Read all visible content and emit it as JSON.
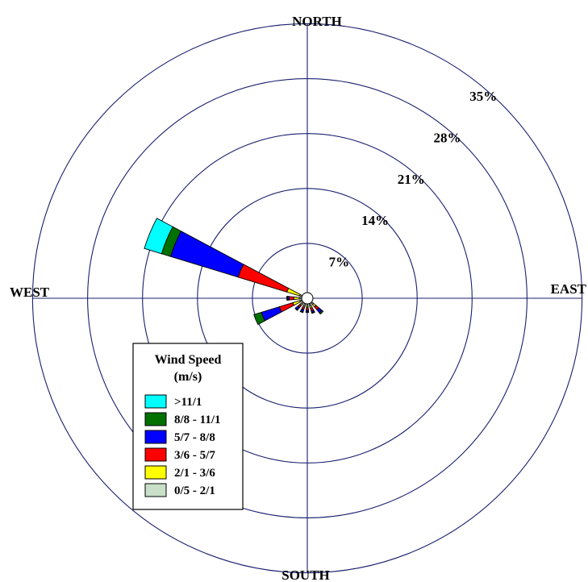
{
  "chart_data": {
    "type": "wind-rose",
    "title": "",
    "directions": {
      "north": "NORTH",
      "east": "EAST",
      "south": "SOUTH",
      "west": "WEST"
    },
    "radial_axis": {
      "max_percent": 35,
      "ticks": [
        7,
        14,
        21,
        28,
        35
      ],
      "tick_labels": [
        "7%",
        "14%",
        "21%",
        "28%",
        "35%"
      ]
    },
    "legend": {
      "title_line1": "Wind Speed",
      "title_line2": "(m/s)",
      "placement": "bottom-left"
    },
    "speed_bins": [
      {
        "label": "0/5 - 2/1",
        "color": "#c8e0c8"
      },
      {
        "label": "2/1 - 3/6",
        "color": "#ffff00"
      },
      {
        "label": "3/6 - 5/7",
        "color": "#ff0000"
      },
      {
        "label": "5/7 - 8/8",
        "color": "#0000ff"
      },
      {
        "label": "8/8 - 11/1",
        "color": "#007000"
      },
      {
        "label": ">11/1",
        "color": "#00ffff"
      }
    ],
    "sectors": [
      {
        "direction_deg": 292.5,
        "cumulative_percent": [
          0.3,
          2.0,
          8.5,
          17.5,
          18.7,
          21.0
        ]
      },
      {
        "direction_deg": 270,
        "cumulative_percent": [
          0.3,
          1.0,
          1.6,
          1.8,
          1.9,
          1.9
        ]
      },
      {
        "direction_deg": 247.5,
        "cumulative_percent": [
          0.3,
          1.2,
          3.0,
          5.4,
          6.4,
          6.4
        ]
      },
      {
        "direction_deg": 135,
        "cumulative_percent": [
          0.3,
          0.7,
          1.2,
          1.7,
          1.9,
          1.9
        ]
      },
      {
        "direction_deg": 157.5,
        "cumulative_percent": [
          0.3,
          0.6,
          1.0,
          1.2,
          1.3,
          1.3
        ]
      },
      {
        "direction_deg": 180,
        "cumulative_percent": [
          0.3,
          0.5,
          0.8,
          1.0,
          1.1,
          1.1
        ]
      },
      {
        "direction_deg": 202.5,
        "cumulative_percent": [
          0.3,
          0.5,
          0.8,
          1.1,
          1.2,
          1.2
        ]
      },
      {
        "direction_deg": 225,
        "cumulative_percent": [
          0.3,
          0.5,
          0.8,
          1.2,
          1.3,
          1.3
        ]
      }
    ]
  }
}
